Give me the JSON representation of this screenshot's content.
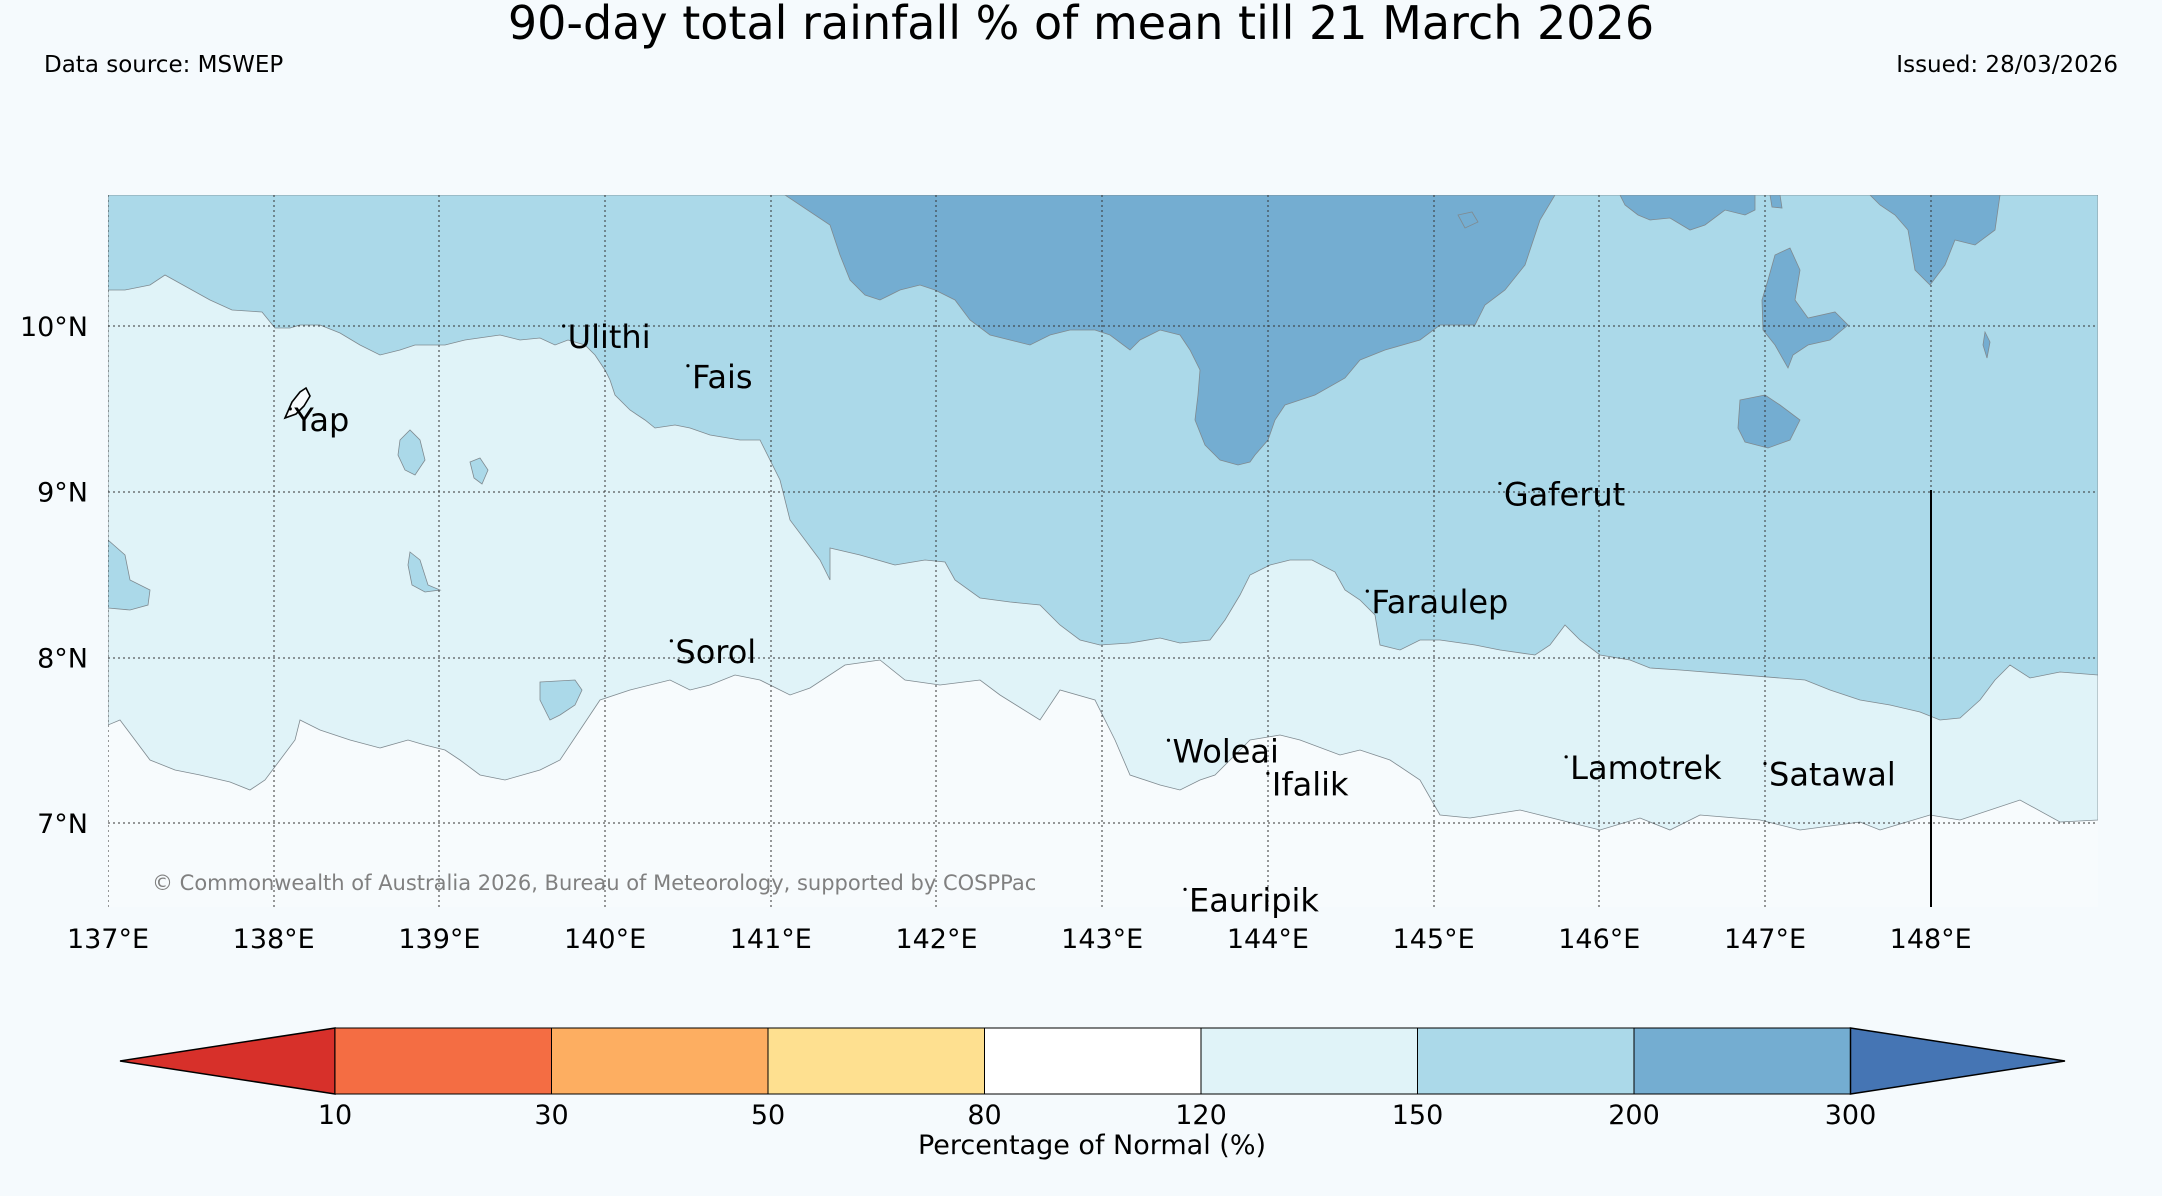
{
  "title": "90-day total rainfall % of mean till 21 March 2026",
  "data_source": "Data source: MSWEP",
  "issued": "Issued: 28/03/2026",
  "copyright": "© Commonwealth of Australia 2026, Bureau of Meteorology, supported by COSPPac",
  "lon_ticks": [
    "137°E",
    "138°E",
    "139°E",
    "140°E",
    "141°E",
    "142°E",
    "143°E",
    "144°E",
    "145°E",
    "146°E",
    "147°E",
    "148°E"
  ],
  "lat_ticks": [
    "10°N",
    "9°N",
    "8°N",
    "7°N"
  ],
  "islands": [
    {
      "name": "Ulithi",
      "lon": 139.75,
      "lat": 10.0
    },
    {
      "name": "Fais",
      "lon": 140.5,
      "lat": 9.76
    },
    {
      "name": "Yap",
      "lon": 138.1,
      "lat": 9.5
    },
    {
      "name": "Gaferut",
      "lon": 145.4,
      "lat": 9.05
    },
    {
      "name": "Faraulep",
      "lon": 144.6,
      "lat": 8.4
    },
    {
      "name": "Sorol",
      "lon": 140.4,
      "lat": 8.1
    },
    {
      "name": "Woleai",
      "lon": 143.4,
      "lat": 7.5
    },
    {
      "name": "Ifalik",
      "lon": 144.0,
      "lat": 7.3
    },
    {
      "name": "Lamotrek",
      "lon": 145.8,
      "lat": 7.4
    },
    {
      "name": "Satawal",
      "lon": 147.0,
      "lat": 7.36
    },
    {
      "name": "Eauripik",
      "lon": 143.5,
      "lat": 6.6
    }
  ],
  "legend": {
    "label": "Percentage of Normal (%)",
    "ticks": [
      "10",
      "30",
      "50",
      "80",
      "120",
      "150",
      "200",
      "300"
    ],
    "colors": {
      "below_10": "#d7302a",
      "10_30": "#f46d43",
      "30_50": "#fdae61",
      "50_80": "#fee090",
      "80_120": "#ffffff",
      "120_150": "#e0f3f8",
      "150_200": "#abd9e9",
      "200_300": "#74add1",
      "above_300": "#4575b4"
    }
  }
}
